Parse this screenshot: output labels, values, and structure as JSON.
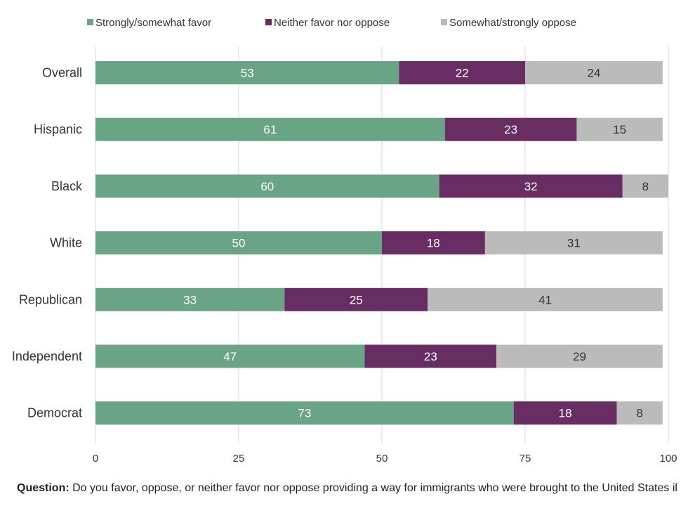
{
  "chart_data": {
    "type": "bar",
    "orientation": "horizontal",
    "stacked": true,
    "categories": [
      "Overall",
      "Hispanic",
      "Black",
      "White",
      "Republican",
      "Independent",
      "Democrat"
    ],
    "series": [
      {
        "name": "Strongly/somewhat favor",
        "color": "#6aa487",
        "label_color": "#ffffff",
        "values": [
          53,
          61,
          60,
          50,
          33,
          47,
          73
        ]
      },
      {
        "name": "Neither favor nor oppose",
        "color": "#682e63",
        "label_color": "#ffffff",
        "values": [
          22,
          23,
          32,
          18,
          25,
          23,
          18
        ]
      },
      {
        "name": "Somewhat/strongly oppose",
        "color": "#bbbbbb",
        "label_color": "#333333",
        "values": [
          24,
          15,
          8,
          31,
          41,
          29,
          8
        ]
      }
    ],
    "xlim": [
      0,
      100
    ],
    "xticks": [
      0,
      25,
      50,
      75,
      100
    ],
    "grid": true,
    "legend_position": "top"
  },
  "footnote": {
    "label": "Question:",
    "text": "Do you favor, oppose, or neither favor nor oppose providing a way for immigrants who were brought to the United States illegally as children to stay legally?"
  }
}
